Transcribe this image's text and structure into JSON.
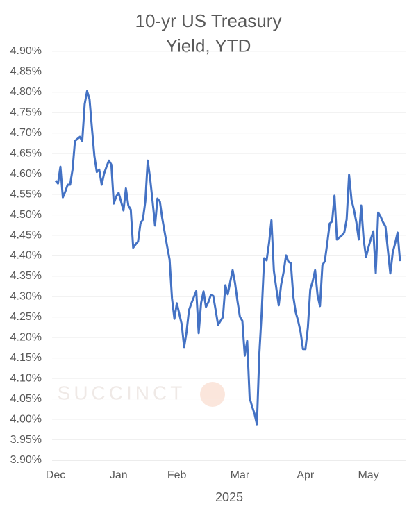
{
  "chart_data": {
    "type": "line",
    "title": "10-yr US Treasury Yield, YTD",
    "x_label": "2025",
    "watermark": "SUCCINCT",
    "categories": [
      "Dec",
      null,
      null,
      null,
      null,
      null,
      null,
      null,
      null,
      null,
      null,
      null,
      null,
      null,
      null,
      null,
      null,
      null,
      null,
      null,
      null,
      null,
      null,
      null,
      null,
      null,
      "Jan",
      null,
      null,
      null,
      null,
      null,
      null,
      null,
      null,
      null,
      null,
      null,
      null,
      null,
      null,
      null,
      null,
      null,
      null,
      null,
      null,
      null,
      null,
      null,
      "Feb",
      null,
      null,
      null,
      null,
      null,
      null,
      null,
      null,
      null,
      null,
      null,
      null,
      null,
      null,
      null,
      null,
      null,
      null,
      null,
      null,
      null,
      null,
      null,
      null,
      null,
      "Mar",
      null,
      null,
      null,
      null,
      null,
      null,
      null,
      null,
      null,
      null,
      null,
      null,
      null,
      null,
      null,
      null,
      null,
      null,
      null,
      null,
      null,
      null,
      null,
      null,
      null,
      null,
      "Apr",
      null,
      null,
      null,
      null,
      null,
      null,
      null,
      null,
      null,
      null,
      null,
      null,
      null,
      null,
      null,
      null,
      null,
      null,
      null,
      null,
      null,
      null,
      null,
      null,
      null,
      "May",
      null,
      null,
      null,
      null,
      null,
      null,
      null,
      null,
      null,
      null,
      null,
      null,
      null
    ],
    "series": [
      {
        "color": "#4472c4",
        "values": [
          4.584,
          4.577,
          4.618,
          4.543,
          4.557,
          4.574,
          4.574,
          4.611,
          4.681,
          4.686,
          4.691,
          4.681,
          4.771,
          4.803,
          4.783,
          4.712,
          4.644,
          4.605,
          4.611,
          4.574,
          4.601,
          4.618,
          4.633,
          4.623,
          4.528,
          4.545,
          4.554,
          4.533,
          4.511,
          4.565,
          4.523,
          4.513,
          4.42,
          4.428,
          4.435,
          4.479,
          4.489,
          4.533,
          4.633,
          4.588,
          4.533,
          4.474,
          4.54,
          4.533,
          4.491,
          4.457,
          4.423,
          4.391,
          4.296,
          4.246,
          4.284,
          4.258,
          4.233,
          4.177,
          4.214,
          4.267,
          4.284,
          4.299,
          4.314,
          4.211,
          4.285,
          4.313,
          4.275,
          4.287,
          4.304,
          4.302,
          4.267,
          4.231,
          4.241,
          4.25,
          4.328,
          4.306,
          4.336,
          4.365,
          4.333,
          4.289,
          4.251,
          4.241,
          4.156,
          4.192,
          4.053,
          4.032,
          4.014,
          3.988,
          4.16,
          4.265,
          4.394,
          4.389,
          4.431,
          4.487,
          4.363,
          4.321,
          4.279,
          4.33,
          4.36,
          4.401,
          4.386,
          4.382,
          4.301,
          4.262,
          4.241,
          4.214,
          4.172,
          4.172,
          4.224,
          4.318,
          4.338,
          4.365,
          4.304,
          4.277,
          4.377,
          4.387,
          4.431,
          4.479,
          4.484,
          4.547,
          4.44,
          4.445,
          4.45,
          4.457,
          4.489,
          4.598,
          4.537,
          4.513,
          4.482,
          4.44,
          4.523,
          4.44,
          4.397,
          4.421,
          4.442,
          4.46,
          4.358,
          4.506,
          4.496,
          4.482,
          4.472,
          4.414,
          4.357,
          4.408,
          4.431,
          4.457,
          4.387
        ]
      }
    ],
    "ylim": [
      3.9,
      4.9
    ],
    "yticks": [
      {
        "value": 3.9,
        "label": "3.90%"
      },
      {
        "value": 3.95,
        "label": "3.95%"
      },
      {
        "value": 4.0,
        "label": "4.00%"
      },
      {
        "value": 4.05,
        "label": "4.05%"
      },
      {
        "value": 4.1,
        "label": "4.10%"
      },
      {
        "value": 4.15,
        "label": "4.15%"
      },
      {
        "value": 4.2,
        "label": "4.20%"
      },
      {
        "value": 4.25,
        "label": "4.25%"
      },
      {
        "value": 4.3,
        "label": "4.30%"
      },
      {
        "value": 4.35,
        "label": "4.35%"
      },
      {
        "value": 4.4,
        "label": "4.40%"
      },
      {
        "value": 4.45,
        "label": "4.45%"
      },
      {
        "value": 4.5,
        "label": "4.50%"
      },
      {
        "value": 4.55,
        "label": "4.55%"
      },
      {
        "value": 4.6,
        "label": "4.60%"
      },
      {
        "value": 4.65,
        "label": "4.65%"
      },
      {
        "value": 4.7,
        "label": "4.70%"
      },
      {
        "value": 4.75,
        "label": "4.75%"
      },
      {
        "value": 4.8,
        "label": "4.80%"
      },
      {
        "value": 4.85,
        "label": "4.85%"
      },
      {
        "value": 4.9,
        "label": "4.90%"
      }
    ],
    "grid": true
  }
}
